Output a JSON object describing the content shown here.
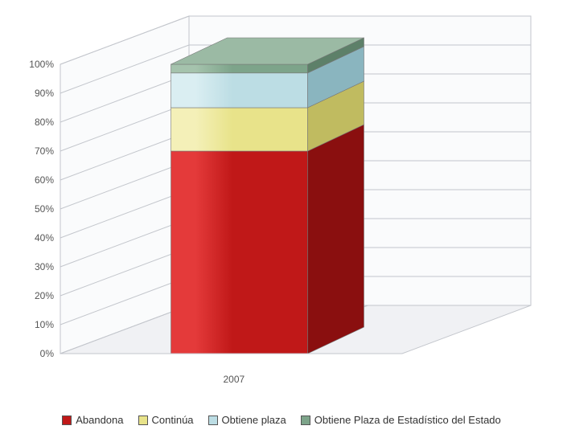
{
  "chart": {
    "type": "stacked-bar-3d",
    "category_label": "2007",
    "y_axis": {
      "ticks": [
        "0%",
        "10%",
        "20%",
        "30%",
        "40%",
        "50%",
        "60%",
        "70%",
        "80%",
        "90%",
        "100%"
      ]
    },
    "series": [
      {
        "key": "abandona",
        "label": "Abandona",
        "value": 70,
        "front_fill": "#c01818",
        "front_highlight": "#e43a3a",
        "side_fill": "#8a0f0f",
        "top_fill": "#d85a5a"
      },
      {
        "key": "continua",
        "label": "Continúa",
        "value": 15,
        "front_fill": "#e8e38a",
        "front_highlight": "#f4f0b8",
        "side_fill": "#c0bb60",
        "top_fill": "#efeaa8"
      },
      {
        "key": "obtiene_plaza",
        "label": "Obtiene plaza",
        "value": 12,
        "front_fill": "#bcdde4",
        "front_highlight": "#daeef2",
        "side_fill": "#8ab5bf",
        "top_fill": "#cfe8ed"
      },
      {
        "key": "obtiene_plaza_estadistico",
        "label": "Obtiene Plaza de Estadístico del Estado",
        "value": 3,
        "front_fill": "#7da48a",
        "front_highlight": "#a5c3ad",
        "side_fill": "#5d8069",
        "top_fill": "#9bbaa4"
      }
    ],
    "scene": {
      "floor_fill": "#f0f1f4",
      "wall_fill": "#fafbfc",
      "grid_stroke": "#c3c6cc"
    }
  }
}
